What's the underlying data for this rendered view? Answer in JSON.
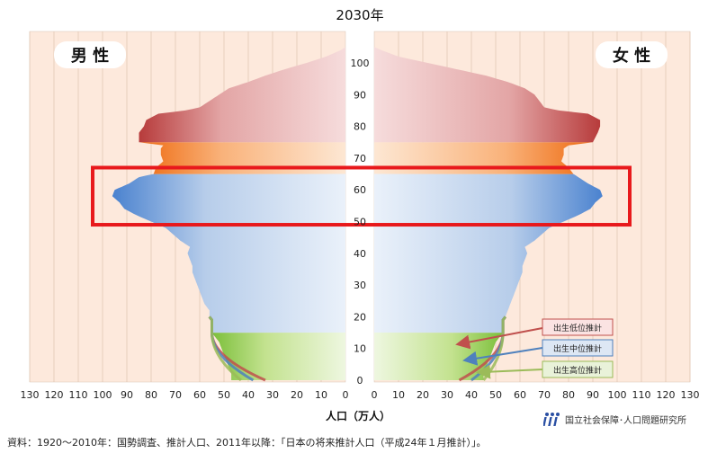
{
  "chart_data": {
    "type": "population-pyramid",
    "title": "2030年",
    "xlabel": "人口（万人）",
    "male_label": "男 性",
    "female_label": "女 性",
    "x_ticks": [
      130,
      120,
      110,
      100,
      90,
      80,
      70,
      60,
      50,
      40,
      30,
      20,
      10,
      0
    ],
    "x_ticks_right": [
      0,
      10,
      20,
      30,
      40,
      50,
      60,
      70,
      80,
      90,
      100,
      110,
      120,
      130
    ],
    "age_ticks": [
      0,
      10,
      20,
      30,
      40,
      50,
      60,
      70,
      80,
      90,
      100
    ],
    "xlim": [
      0,
      130
    ],
    "ylim": [
      0,
      106
    ],
    "grid": true,
    "male": [
      [
        0,
        47
      ],
      [
        2,
        47
      ],
      [
        4,
        48
      ],
      [
        6,
        49
      ],
      [
        8,
        50
      ],
      [
        10,
        51
      ],
      [
        12,
        52
      ],
      [
        14,
        54
      ],
      [
        15,
        55
      ],
      [
        17,
        55
      ],
      [
        19,
        55
      ],
      [
        20,
        56
      ],
      [
        22,
        56
      ],
      [
        24,
        58
      ],
      [
        26,
        59
      ],
      [
        28,
        60
      ],
      [
        30,
        61
      ],
      [
        32,
        62
      ],
      [
        34,
        63
      ],
      [
        36,
        63
      ],
      [
        38,
        64
      ],
      [
        40,
        65
      ],
      [
        42,
        64
      ],
      [
        44,
        68
      ],
      [
        46,
        71
      ],
      [
        48,
        74
      ],
      [
        50,
        80
      ],
      [
        52,
        86
      ],
      [
        54,
        91
      ],
      [
        56,
        93
      ],
      [
        58,
        96
      ],
      [
        60,
        95
      ],
      [
        62,
        89
      ],
      [
        64,
        85
      ],
      [
        65,
        79
      ],
      [
        67,
        78
      ],
      [
        69,
        75
      ],
      [
        71,
        76
      ],
      [
        73,
        76
      ],
      [
        74,
        75
      ],
      [
        75,
        85
      ],
      [
        78,
        85
      ],
      [
        80,
        83
      ],
      [
        82,
        82
      ],
      [
        84,
        77
      ],
      [
        85,
        66
      ],
      [
        86,
        60
      ],
      [
        88,
        56
      ],
      [
        90,
        52
      ],
      [
        92,
        48
      ],
      [
        94,
        40
      ],
      [
        96,
        33
      ],
      [
        98,
        25
      ],
      [
        100,
        16
      ],
      [
        102,
        8
      ],
      [
        104,
        2
      ],
      [
        105,
        0
      ]
    ],
    "female": [
      [
        0,
        45
      ],
      [
        2,
        45
      ],
      [
        4,
        46
      ],
      [
        6,
        47
      ],
      [
        8,
        48
      ],
      [
        10,
        49
      ],
      [
        12,
        50
      ],
      [
        14,
        52
      ],
      [
        15,
        53
      ],
      [
        17,
        53
      ],
      [
        19,
        53
      ],
      [
        20,
        54
      ],
      [
        22,
        55
      ],
      [
        24,
        56
      ],
      [
        26,
        57
      ],
      [
        28,
        58
      ],
      [
        30,
        59
      ],
      [
        32,
        60
      ],
      [
        34,
        61
      ],
      [
        36,
        61
      ],
      [
        38,
        62
      ],
      [
        40,
        63
      ],
      [
        42,
        62
      ],
      [
        44,
        66
      ],
      [
        46,
        69
      ],
      [
        48,
        72
      ],
      [
        50,
        78
      ],
      [
        52,
        84
      ],
      [
        54,
        89
      ],
      [
        56,
        91
      ],
      [
        58,
        94
      ],
      [
        60,
        93
      ],
      [
        62,
        88
      ],
      [
        64,
        84
      ],
      [
        65,
        82
      ],
      [
        67,
        80
      ],
      [
        69,
        77
      ],
      [
        71,
        78
      ],
      [
        73,
        78
      ],
      [
        74,
        80
      ],
      [
        75,
        90
      ],
      [
        78,
        92
      ],
      [
        80,
        93
      ],
      [
        82,
        93
      ],
      [
        84,
        88
      ],
      [
        85,
        76
      ],
      [
        86,
        70
      ],
      [
        88,
        68
      ],
      [
        90,
        66
      ],
      [
        92,
        62
      ],
      [
        94,
        55
      ],
      [
        96,
        46
      ],
      [
        98,
        34
      ],
      [
        100,
        22
      ],
      [
        102,
        10
      ],
      [
        104,
        3
      ],
      [
        105,
        0
      ]
    ],
    "projections_under15": {
      "low": {
        "label": "出生低位推計",
        "color": "#c0504d",
        "male_at_0": 33,
        "female_at_0": 35
      },
      "mid": {
        "label": "出生中位推計",
        "color": "#4f81bd",
        "male_at_0": 38,
        "female_at_0": 40
      },
      "high": {
        "label": "出生高位推計",
        "color": "#9bbb59",
        "male_at_0": 43,
        "female_at_0": 45
      }
    },
    "highlight_ages": [
      49,
      67
    ],
    "highlight_color": "#e8191c",
    "colors": {
      "elderly_75plus": "#c0504d",
      "elderly_65_74": "#f07a1c",
      "working": "#4f81bd",
      "children": "#8dc63f",
      "background": "#fde9dc"
    }
  },
  "footer": {
    "source": "資料：1920～2010年：国勢調査、推計人口、2011年以降：「日本の将来推計人口（平成24年１月推計）」。",
    "org": "国立社会保障･人口問題研究所"
  }
}
